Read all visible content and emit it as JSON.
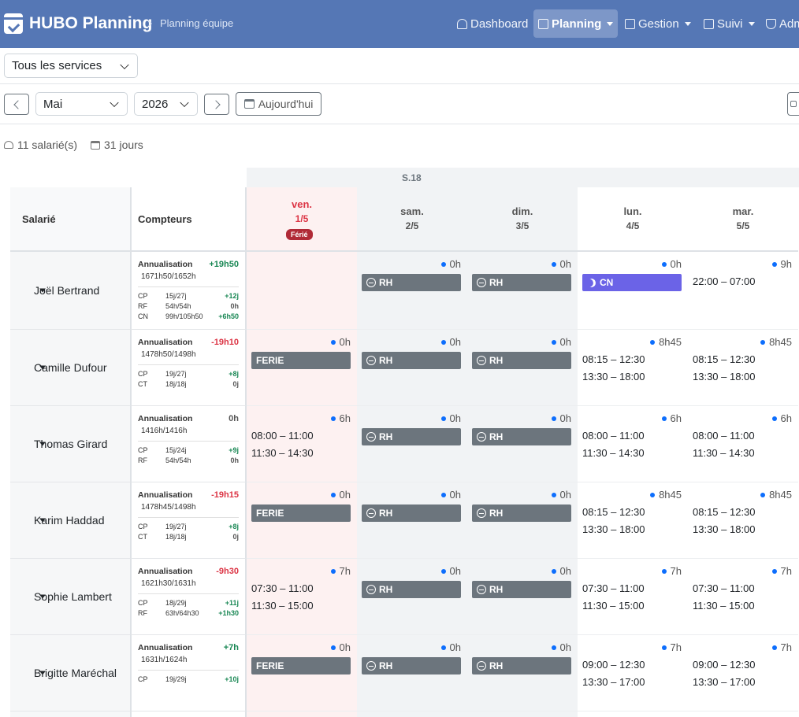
{
  "nav": {
    "brand": "HUBO Planning",
    "crumb": "Planning équipe",
    "items": [
      {
        "label": "Dashboard"
      },
      {
        "label": "Planning"
      },
      {
        "label": "Gestion"
      },
      {
        "label": "Suivi"
      },
      {
        "label": "Adm"
      }
    ]
  },
  "filters": {
    "service": "Tous les services"
  },
  "toolbar": {
    "month": "Mai",
    "year": "2026",
    "today": "Aujourd'hui"
  },
  "stats": {
    "employees": "11 salarié(s)",
    "days": "31 jours"
  },
  "table": {
    "col_employee": "Salarié",
    "col_counters": "Compteurs",
    "week": "S.18",
    "ferie_label": "Férié",
    "days": [
      {
        "name": "ven.",
        "date": "1/5"
      },
      {
        "name": "sam.",
        "date": "2/5"
      },
      {
        "name": "dim.",
        "date": "3/5"
      },
      {
        "name": "lun.",
        "date": "4/5"
      },
      {
        "name": "mar.",
        "date": "5/5"
      }
    ]
  },
  "employees": [
    {
      "name": "Joël Bertrand",
      "annu_label": "Annualisation",
      "annu_val": "+19h50",
      "annu_sub": "1671h50/1652h",
      "counters": [
        {
          "k": "CP",
          "v": "15j/27j",
          "r": "+12j"
        },
        {
          "k": "RF",
          "v": "54h/54h",
          "r": "0h"
        },
        {
          "k": "CN",
          "v": "99h/105h50",
          "r": "+6h50"
        }
      ],
      "days": [
        {
          "total": "",
          "type": "none"
        },
        {
          "total": "0h",
          "type": "rh",
          "label": "RH"
        },
        {
          "total": "0h",
          "type": "rh",
          "label": "RH"
        },
        {
          "total": "0h",
          "type": "cn",
          "label": "CN"
        },
        {
          "total": "9h",
          "type": "sched",
          "lines": [
            "22:00 – 07:00"
          ]
        }
      ]
    },
    {
      "name": "Camille Dufour",
      "annu_label": "Annualisation",
      "annu_val": "-19h10",
      "annu_sub": "1478h50/1498h",
      "counters": [
        {
          "k": "CP",
          "v": "19j/27j",
          "r": "+8j"
        },
        {
          "k": "CT",
          "v": "18j/18j",
          "r": "0j"
        }
      ],
      "days": [
        {
          "total": "0h",
          "type": "ferie",
          "label": "FERIE"
        },
        {
          "total": "0h",
          "type": "rh",
          "label": "RH"
        },
        {
          "total": "0h",
          "type": "rh",
          "label": "RH"
        },
        {
          "total": "8h45",
          "type": "sched",
          "lines": [
            "08:15 – 12:30",
            "13:30 – 18:00"
          ]
        },
        {
          "total": "8h45",
          "type": "sched",
          "lines": [
            "08:15 – 12:30",
            "13:30 – 18:00"
          ]
        }
      ]
    },
    {
      "name": "Thomas Girard",
      "annu_label": "Annualisation",
      "annu_val": "0h",
      "annu_sub": "1416h/1416h",
      "counters": [
        {
          "k": "CP",
          "v": "15j/24j",
          "r": "+9j"
        },
        {
          "k": "RF",
          "v": "54h/54h",
          "r": "0h"
        }
      ],
      "days": [
        {
          "total": "6h",
          "type": "sched",
          "lines": [
            "08:00 – 11:00",
            "11:30 – 14:30"
          ]
        },
        {
          "total": "0h",
          "type": "rh",
          "label": "RH"
        },
        {
          "total": "0h",
          "type": "rh",
          "label": "RH"
        },
        {
          "total": "6h",
          "type": "sched",
          "lines": [
            "08:00 – 11:00",
            "11:30 – 14:30"
          ]
        },
        {
          "total": "6h",
          "type": "sched",
          "lines": [
            "08:00 – 11:00",
            "11:30 – 14:30"
          ]
        }
      ]
    },
    {
      "name": "Karim Haddad",
      "annu_label": "Annualisation",
      "annu_val": "-19h15",
      "annu_sub": "1478h45/1498h",
      "counters": [
        {
          "k": "CP",
          "v": "19j/27j",
          "r": "+8j"
        },
        {
          "k": "CT",
          "v": "18j/18j",
          "r": "0j"
        }
      ],
      "days": [
        {
          "total": "0h",
          "type": "ferie",
          "label": "FERIE"
        },
        {
          "total": "0h",
          "type": "rh",
          "label": "RH"
        },
        {
          "total": "0h",
          "type": "rh",
          "label": "RH"
        },
        {
          "total": "8h45",
          "type": "sched",
          "lines": [
            "08:15 – 12:30",
            "13:30 – 18:00"
          ]
        },
        {
          "total": "8h45",
          "type": "sched",
          "lines": [
            "08:15 – 12:30",
            "13:30 – 18:00"
          ]
        }
      ]
    },
    {
      "name": "Sophie Lambert",
      "annu_label": "Annualisation",
      "annu_val": "-9h30",
      "annu_sub": "1621h30/1631h",
      "counters": [
        {
          "k": "CP",
          "v": "18j/29j",
          "r": "+11j"
        },
        {
          "k": "RF",
          "v": "63h/64h30",
          "r": "+1h30"
        }
      ],
      "days": [
        {
          "total": "7h",
          "type": "sched",
          "lines": [
            "07:30 – 11:00",
            "11:30 – 15:00"
          ]
        },
        {
          "total": "0h",
          "type": "rh",
          "label": "RH"
        },
        {
          "total": "0h",
          "type": "rh",
          "label": "RH"
        },
        {
          "total": "7h",
          "type": "sched",
          "lines": [
            "07:30 – 11:00",
            "11:30 – 15:00"
          ]
        },
        {
          "total": "7h",
          "type": "sched",
          "lines": [
            "07:30 – 11:00",
            "11:30 – 15:00"
          ]
        }
      ]
    },
    {
      "name": "Brigitte Maréchal",
      "annu_label": "Annualisation",
      "annu_val": "+7h",
      "annu_sub": "1631h/1624h",
      "counters": [
        {
          "k": "CP",
          "v": "19j/29j",
          "r": "+10j"
        }
      ],
      "days": [
        {
          "total": "0h",
          "type": "ferie",
          "label": "FERIE"
        },
        {
          "total": "0h",
          "type": "rh",
          "label": "RH"
        },
        {
          "total": "0h",
          "type": "rh",
          "label": "RH"
        },
        {
          "total": "7h",
          "type": "sched",
          "lines": [
            "09:00 – 12:30",
            "13:30 – 17:00"
          ]
        },
        {
          "total": "7h",
          "type": "sched",
          "lines": [
            "09:00 – 12:30",
            "13:30 – 17:00"
          ]
        }
      ]
    }
  ],
  "colors": {
    "ferie_bg": "#fdf1f1",
    "weekend_bg": "#f1f3f5",
    "rh": "#6c757d",
    "cn": "#6b63e7",
    "positive": "#198754",
    "negative": "#dc3545"
  }
}
